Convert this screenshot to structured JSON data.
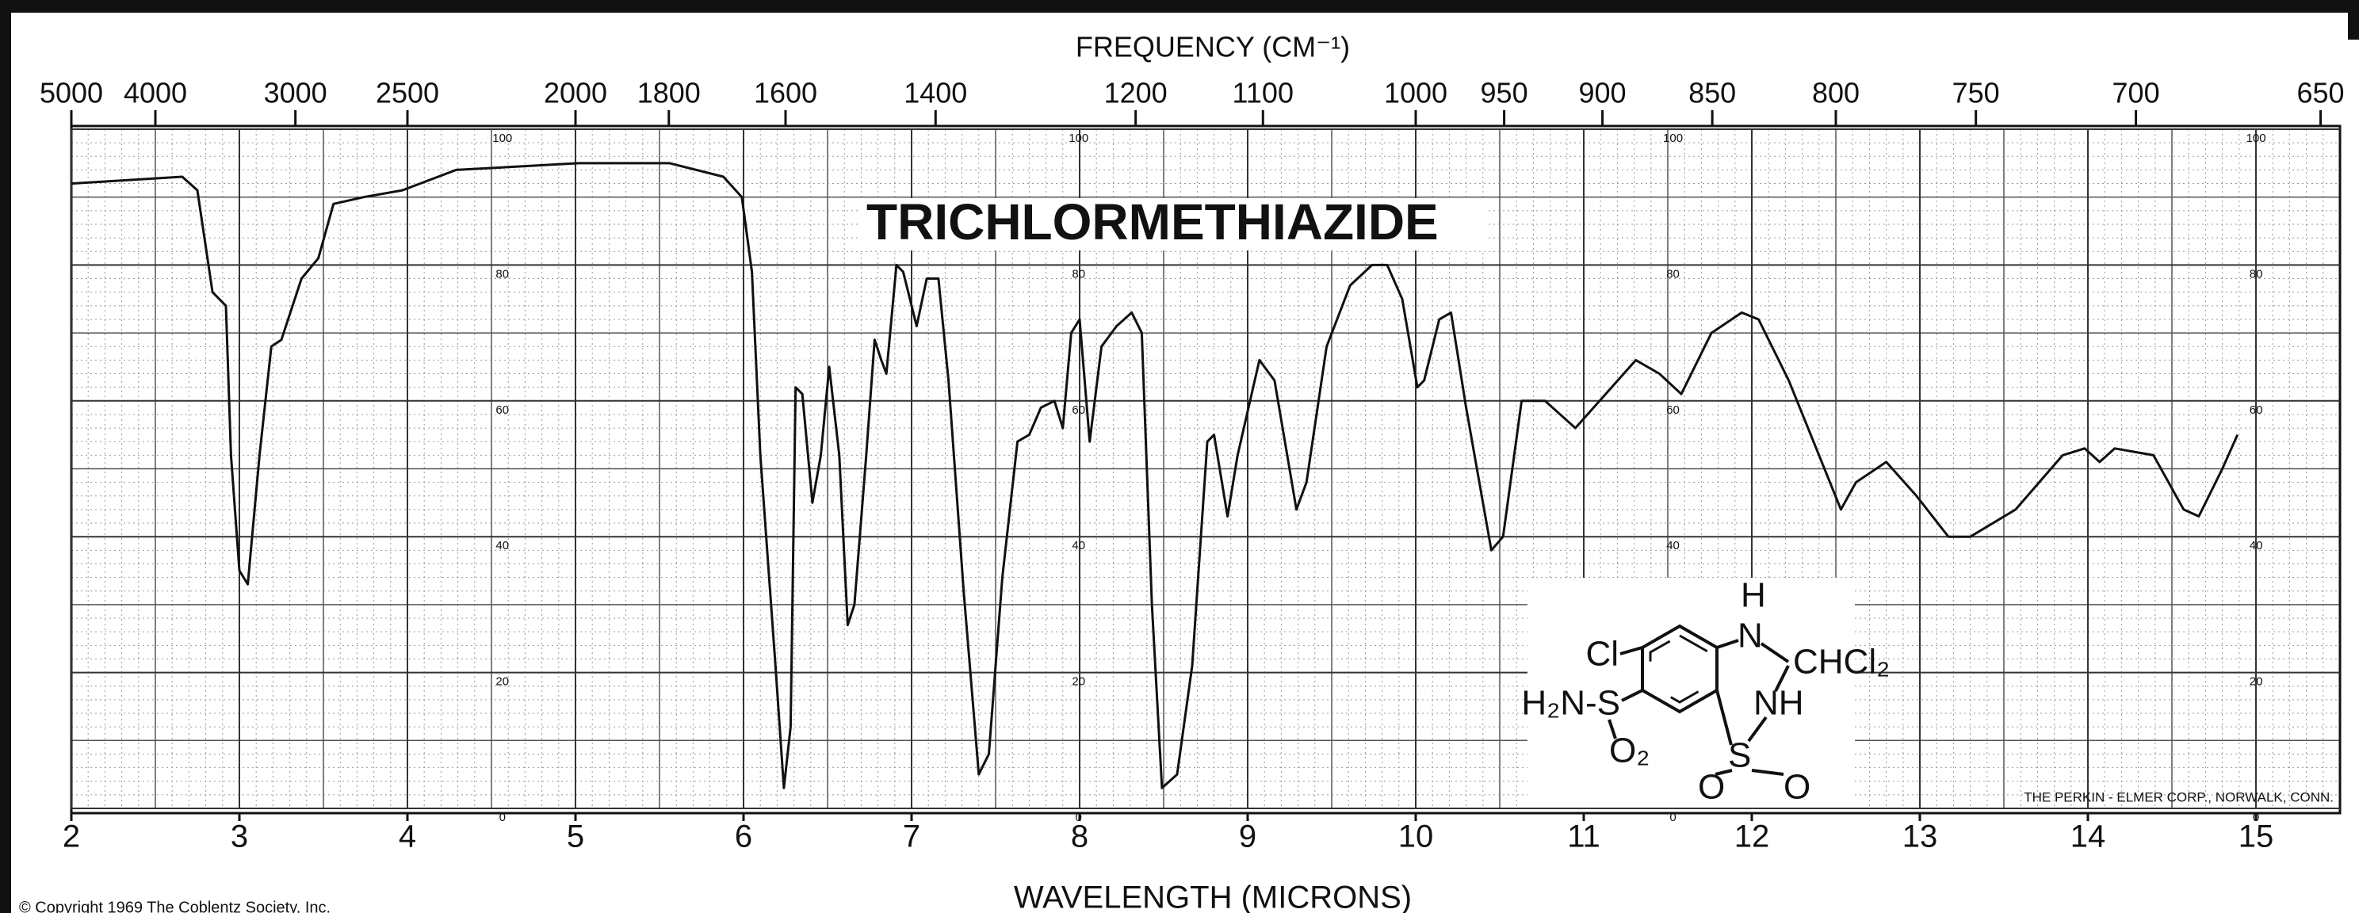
{
  "chart_data": {
    "type": "line",
    "title": "TRICHLORMETHIAZIDE",
    "xlabel": "WAVELENGTH (MICRONS)",
    "x2label": "FREQUENCY (CM⁻¹)",
    "footer": "THE PERKIN - ELMER CORP., NORWALK, CONN.",
    "copyright": "© Copyright 1969 The Coblentz Society, Inc.",
    "color": "#111111",
    "grid": true,
    "xlim": [
      2,
      15.5
    ],
    "xticks": [
      2,
      3,
      4,
      5,
      6,
      7,
      8,
      9,
      10,
      11,
      12,
      13,
      14,
      15
    ],
    "x2ticks": [
      5000,
      4000,
      3000,
      2500,
      2000,
      1800,
      1600,
      1400,
      1200,
      1100,
      1000,
      950,
      900,
      850,
      800,
      750,
      700,
      650
    ],
    "ylim": [
      0,
      100
    ],
    "yticks": [
      0,
      20,
      40,
      60,
      80,
      100
    ],
    "x": [
      2.0,
      2.66,
      2.75,
      2.84,
      2.92,
      2.95,
      3.0,
      3.05,
      3.12,
      3.19,
      3.25,
      3.37,
      3.47,
      3.56,
      3.74,
      3.97,
      4.29,
      5.02,
      5.56,
      5.88,
      5.99,
      6.05,
      6.1,
      6.19,
      6.24,
      6.28,
      6.31,
      6.35,
      6.41,
      6.46,
      6.51,
      6.57,
      6.62,
      6.66,
      6.73,
      6.78,
      6.82,
      6.85,
      6.91,
      6.95,
      7.03,
      7.09,
      7.16,
      7.22,
      7.31,
      7.4,
      7.46,
      7.54,
      7.63,
      7.7,
      7.77,
      7.85,
      7.9,
      7.95,
      8.0,
      8.06,
      8.13,
      8.22,
      8.31,
      8.37,
      8.43,
      8.49,
      8.58,
      8.67,
      8.76,
      8.8,
      8.88,
      8.94,
      9.07,
      9.16,
      9.29,
      9.35,
      9.47,
      9.61,
      9.74,
      9.83,
      9.92,
      10.01,
      10.05,
      10.14,
      10.21,
      10.3,
      10.45,
      10.52,
      10.63,
      10.77,
      10.95,
      11.13,
      11.31,
      11.45,
      11.58,
      11.76,
      11.94,
      12.04,
      12.22,
      12.4,
      12.53,
      12.62,
      12.8,
      12.98,
      13.17,
      13.3,
      13.57,
      13.85,
      13.98,
      14.07,
      14.16,
      14.39,
      14.57,
      14.66,
      14.8,
      14.89
    ],
    "values": [
      92,
      93,
      91,
      76,
      74,
      52,
      35,
      33,
      52,
      68,
      69,
      78,
      81,
      89,
      90,
      91,
      94,
      95,
      95,
      93,
      90,
      79,
      52,
      21,
      3,
      12,
      62,
      61,
      45,
      52,
      65,
      52,
      27,
      30,
      52,
      69,
      66,
      64,
      80,
      79,
      71,
      78,
      78,
      63,
      32,
      5,
      8,
      34,
      54,
      55,
      59,
      60,
      56,
      70,
      72,
      54,
      68,
      71,
      73,
      70,
      30,
      3,
      5,
      21,
      54,
      55,
      43,
      52,
      66,
      63,
      44,
      48,
      68,
      77,
      80,
      80,
      75,
      62,
      63,
      72,
      73,
      59,
      38,
      40,
      60,
      60,
      56,
      61,
      66,
      64,
      61,
      70,
      73,
      72,
      63,
      52,
      44,
      48,
      51,
      46,
      40,
      40,
      44,
      52,
      53,
      51,
      53,
      52,
      44,
      43,
      50,
      55
    ]
  },
  "structure": {
    "labels": [
      "H",
      "N",
      "CHCl₂",
      "Cl",
      "H₂N-S",
      "NH",
      "O₂",
      "S",
      "O",
      "O"
    ]
  }
}
